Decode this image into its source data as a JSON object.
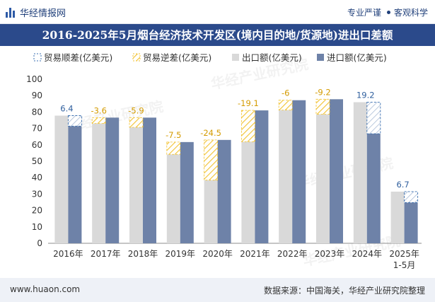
{
  "header": {
    "brand": "华经情报网",
    "tagline_left": "专业严谨",
    "tagline_right": "客观科学"
  },
  "footer": {
    "url": "www.huaon.com",
    "source": "数据来源：中国海关，华经产业研究院整理"
  },
  "watermark": "华经产业研究院",
  "colors": {
    "export": "#d9d9d9",
    "import": "#6e82a8",
    "surplus_border": "#3a6fb0",
    "deficit_hatch": "#f2c230",
    "title_bg": "#2b4a8b"
  },
  "chart_data": {
    "type": "bar",
    "title": "2016-2025年5月烟台经济技术开发区(境内目的地/货源地)进出口差额",
    "categories": [
      "2016年",
      "2017年",
      "2018年",
      "2019年",
      "2020年",
      "2021年",
      "2022年",
      "2023年",
      "2024年",
      "2025年\n1-5月"
    ],
    "series": [
      {
        "name": "出口额(亿美元)",
        "values": [
          77.8,
          73.0,
          70.7,
          54.2,
          38.5,
          61.9,
          81.2,
          78.6,
          86.0,
          31.5
        ]
      },
      {
        "name": "进口额(亿美元)",
        "values": [
          71.4,
          76.6,
          76.6,
          61.7,
          63.0,
          81.0,
          87.2,
          87.8,
          66.8,
          24.8
        ]
      }
    ],
    "balance": {
      "labels": [
        "6.4",
        "-3.6",
        "-5.9",
        "-7.5",
        "-24.5",
        "-19.1",
        "-6",
        "-9.2",
        "19.2",
        "6.7"
      ],
      "values": [
        6.4,
        -3.6,
        -5.9,
        -7.5,
        -24.5,
        -19.1,
        -6,
        -9.2,
        19.2,
        6.7
      ]
    },
    "legend": {
      "placement": "top",
      "items": [
        "贸易顺差(亿美元)",
        "贸易逆差(亿美元)",
        "出口额(亿美元)",
        "进口额(亿美元)"
      ]
    },
    "yaxis": {
      "ylim": [
        0,
        100
      ],
      "ticks": [
        "0",
        "10",
        "20",
        "30",
        "40",
        "50",
        "60",
        "70",
        "80",
        "90",
        "100"
      ]
    },
    "grid": false
  }
}
